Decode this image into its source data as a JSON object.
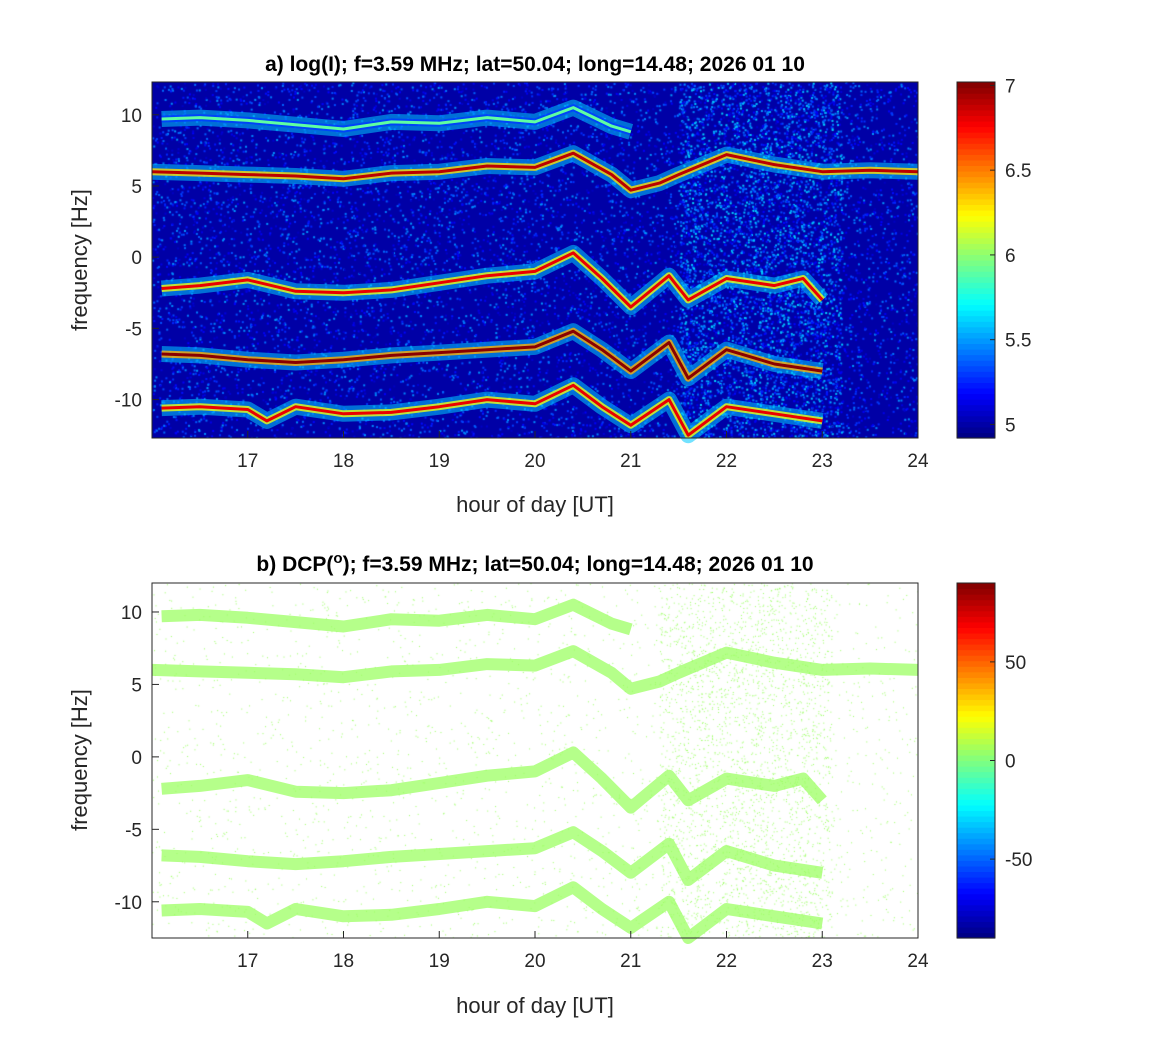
{
  "chart_data": [
    {
      "type": "heatmap",
      "title_prefix": "a) log(I); f=3.59 MHz;  lat=50.04; long=14.48; 2026 01 10",
      "xlabel": "hour of day [UT]",
      "ylabel": "frequency [Hz]",
      "xlim": [
        16,
        24
      ],
      "ylim": [
        -12.7,
        12.3
      ],
      "xticks": [
        17,
        18,
        19,
        20,
        21,
        22,
        23,
        24
      ],
      "yticks": [
        10,
        5,
        0,
        -5,
        -10
      ],
      "colorbar": {
        "colormap": "jet",
        "range": [
          4.92,
          7.02
        ],
        "ticks": [
          "7",
          "6.5",
          "6",
          "5.5",
          "5"
        ],
        "tick_values": [
          7,
          6.5,
          6,
          5.5,
          5
        ]
      },
      "background_value": 5.0,
      "ridges": [
        {
          "name": "ridge-10Hz",
          "peak": 5.9,
          "points": [
            [
              16.1,
              9.7
            ],
            [
              16.5,
              9.8
            ],
            [
              17,
              9.6
            ],
            [
              17.5,
              9.3
            ],
            [
              18,
              9.0
            ],
            [
              18.5,
              9.5
            ],
            [
              19,
              9.4
            ],
            [
              19.5,
              9.8
            ],
            [
              20,
              9.5
            ],
            [
              20.4,
              10.5
            ],
            [
              20.8,
              9.2
            ],
            [
              21.0,
              8.8
            ]
          ]
        },
        {
          "name": "ridge-6Hz",
          "peak": 6.9,
          "points": [
            [
              16,
              6
            ],
            [
              16.5,
              5.9
            ],
            [
              17,
              5.8
            ],
            [
              17.5,
              5.7
            ],
            [
              18,
              5.5
            ],
            [
              18.5,
              5.9
            ],
            [
              19,
              6.0
            ],
            [
              19.5,
              6.4
            ],
            [
              20,
              6.3
            ],
            [
              20.4,
              7.3
            ],
            [
              20.8,
              5.8
            ],
            [
              21.0,
              4.7
            ],
            [
              21.3,
              5.2
            ],
            [
              21.5,
              5.8
            ],
            [
              22,
              7.2
            ],
            [
              22.5,
              6.5
            ],
            [
              23,
              6.0
            ],
            [
              23.5,
              6.1
            ],
            [
              24,
              6.0
            ]
          ]
        },
        {
          "name": "ridge-minus2Hz",
          "peak": 6.8,
          "points": [
            [
              16.1,
              -2.2
            ],
            [
              16.5,
              -2.0
            ],
            [
              17,
              -1.6
            ],
            [
              17.5,
              -2.4
            ],
            [
              18,
              -2.5
            ],
            [
              18.5,
              -2.3
            ],
            [
              19,
              -1.8
            ],
            [
              19.5,
              -1.3
            ],
            [
              20,
              -1.0
            ],
            [
              20.4,
              0.3
            ],
            [
              20.7,
              -1.5
            ],
            [
              21,
              -3.5
            ],
            [
              21.4,
              -1.3
            ],
            [
              21.6,
              -3.0
            ],
            [
              22,
              -1.5
            ],
            [
              22.5,
              -2.0
            ],
            [
              22.8,
              -1.5
            ],
            [
              23,
              -3.0
            ]
          ]
        },
        {
          "name": "ridge-minus7Hz",
          "peak": 7.0,
          "points": [
            [
              16.1,
              -6.8
            ],
            [
              16.5,
              -6.9
            ],
            [
              17,
              -7.2
            ],
            [
              17.5,
              -7.4
            ],
            [
              18,
              -7.2
            ],
            [
              18.5,
              -6.9
            ],
            [
              19,
              -6.7
            ],
            [
              19.5,
              -6.5
            ],
            [
              20,
              -6.3
            ],
            [
              20.4,
              -5.2
            ],
            [
              20.7,
              -6.5
            ],
            [
              21,
              -8.0
            ],
            [
              21.4,
              -6.0
            ],
            [
              21.6,
              -8.5
            ],
            [
              22,
              -6.5
            ],
            [
              22.5,
              -7.5
            ],
            [
              23,
              -8.0
            ]
          ]
        },
        {
          "name": "ridge-minus11Hz",
          "peak": 6.8,
          "points": [
            [
              16.1,
              -10.6
            ],
            [
              16.5,
              -10.5
            ],
            [
              17,
              -10.7
            ],
            [
              17.2,
              -11.5
            ],
            [
              17.5,
              -10.5
            ],
            [
              18,
              -11.0
            ],
            [
              18.5,
              -10.9
            ],
            [
              19,
              -10.5
            ],
            [
              19.5,
              -10.0
            ],
            [
              20,
              -10.3
            ],
            [
              20.4,
              -9.0
            ],
            [
              20.7,
              -10.5
            ],
            [
              21,
              -11.8
            ],
            [
              21.4,
              -10.0
            ],
            [
              21.6,
              -12.5
            ],
            [
              22,
              -10.5
            ],
            [
              22.5,
              -11.0
            ],
            [
              23,
              -11.5
            ]
          ]
        }
      ]
    },
    {
      "type": "heatmap",
      "title_prefix": "b) DCP(",
      "title_sup": "o",
      "title_suffix": "); f=3.59 MHz;  lat=50.04; long=14.48; 2026 01 10",
      "xlabel": "hour of day [UT]",
      "ylabel": "frequency [Hz]",
      "xlim": [
        16,
        24
      ],
      "ylim": [
        -12.5,
        12
      ],
      "xticks": [
        17,
        18,
        19,
        20,
        21,
        22,
        23,
        24
      ],
      "yticks": [
        10,
        5,
        0,
        -5,
        -10
      ],
      "colorbar": {
        "colormap": "jet",
        "range": [
          -90,
          90
        ],
        "ticks": [
          "50",
          "0",
          "-50"
        ],
        "tick_values": [
          50,
          0,
          -50
        ]
      },
      "ridge_value": 5
    }
  ]
}
